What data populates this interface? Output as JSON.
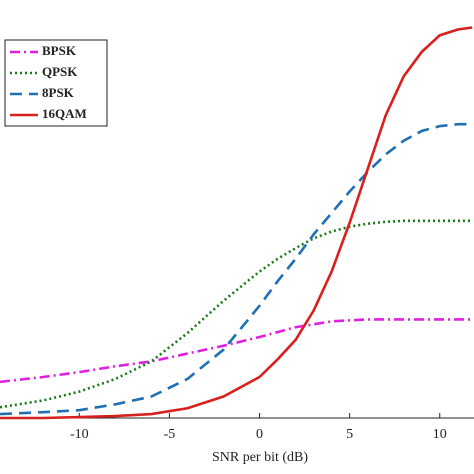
{
  "chart_data": {
    "type": "line",
    "xlabel": "SNR per bit (dB)",
    "x": [
      -14.4,
      -12,
      -10,
      -8,
      -6,
      -4,
      -2,
      0,
      1,
      2,
      3,
      4,
      5,
      6,
      7,
      8,
      9,
      10,
      11,
      11.8
    ],
    "series": [
      {
        "name": "BPSK",
        "color": "#e020e0",
        "dash": "10 4 2 4",
        "values": [
          0.37,
          0.42,
          0.47,
          0.53,
          0.58,
          0.66,
          0.74,
          0.83,
          0.88,
          0.93,
          0.96,
          0.99,
          1.0,
          1.01,
          1.01,
          1.01,
          1.01,
          1.01,
          1.01,
          1.01
        ]
      },
      {
        "name": "QPSK",
        "color": "#1a7a1a",
        "dash": "2 3",
        "values": [
          0.11,
          0.18,
          0.27,
          0.4,
          0.58,
          0.87,
          1.2,
          1.5,
          1.63,
          1.74,
          1.84,
          1.91,
          1.96,
          1.99,
          2.01,
          2.02,
          2.02,
          2.02,
          2.02,
          2.02
        ]
      },
      {
        "name": "8PSK",
        "color": "#1f6fb4",
        "dash": "12 7",
        "values": [
          0.04,
          0.06,
          0.08,
          0.14,
          0.22,
          0.4,
          0.7,
          1.15,
          1.4,
          1.63,
          1.88,
          2.1,
          2.32,
          2.52,
          2.7,
          2.84,
          2.94,
          2.99,
          3.01,
          3.01
        ]
      },
      {
        "name": "16QAM",
        "color": "#d8201e",
        "dash": "",
        "values": [
          0.0,
          0.0,
          0.01,
          0.02,
          0.04,
          0.1,
          0.22,
          0.42,
          0.6,
          0.8,
          1.1,
          1.5,
          2.0,
          2.55,
          3.1,
          3.5,
          3.75,
          3.92,
          3.98,
          4.0
        ]
      }
    ],
    "xlim": [
      -14.4,
      11.9
    ],
    "xticks": [
      -10,
      -5,
      0,
      5,
      10
    ],
    "ylim": [
      0,
      4.2
    ],
    "legend": "upper left"
  }
}
